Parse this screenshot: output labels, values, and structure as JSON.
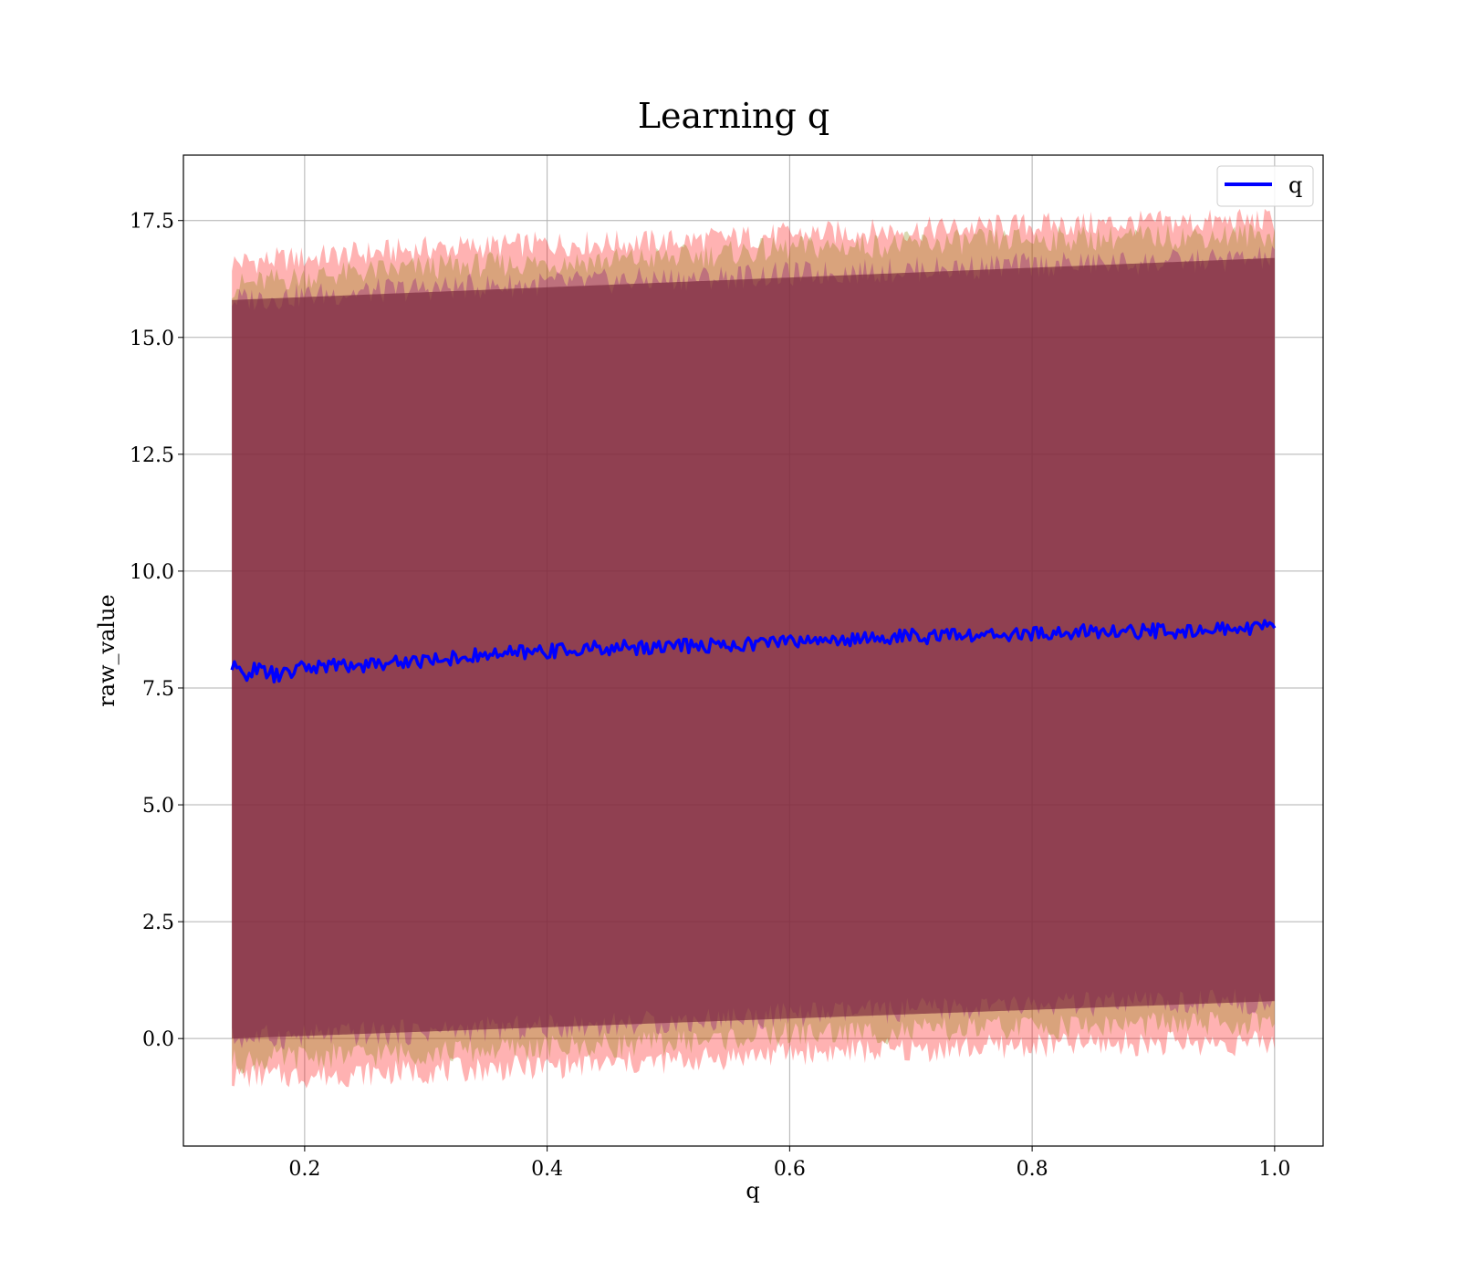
{
  "chart_data": {
    "type": "line",
    "title": "Learning q",
    "xlabel": "q",
    "ylabel": "raw_value",
    "xlim": [
      0.1,
      1.04
    ],
    "ylim": [
      -2.3,
      18.9
    ],
    "xticks": [
      0.2,
      0.4,
      0.6,
      0.8,
      1.0
    ],
    "xtick_labels": [
      "0.2",
      "0.4",
      "0.6",
      "0.8",
      "1.0"
    ],
    "yticks": [
      0.0,
      2.5,
      5.0,
      7.5,
      10.0,
      12.5,
      15.0,
      17.5
    ],
    "ytick_labels": [
      "0.0",
      "2.5",
      "5.0",
      "7.5",
      "10.0",
      "12.5",
      "15.0",
      "17.5"
    ],
    "grid": true,
    "legend": {
      "position": "top-right",
      "entries": [
        {
          "label": "q",
          "color": "#0000ff"
        }
      ]
    },
    "series": [
      {
        "name": "q",
        "color": "#0000ff",
        "x": [
          0.14,
          0.15,
          0.16,
          0.18,
          0.2,
          0.25,
          0.3,
          0.35,
          0.4,
          0.45,
          0.5,
          0.55,
          0.6,
          0.65,
          0.7,
          0.75,
          0.8,
          0.85,
          0.9,
          0.95,
          1.0
        ],
        "y": [
          7.93,
          7.8,
          7.9,
          7.75,
          7.95,
          8.0,
          8.1,
          8.2,
          8.3,
          8.35,
          8.4,
          8.42,
          8.5,
          8.55,
          8.6,
          8.62,
          8.65,
          8.7,
          8.72,
          8.75,
          8.8
        ]
      }
    ],
    "bands": [
      {
        "role": "outer",
        "color": "#ff0000",
        "opacity": 0.3,
        "x": [
          0.14,
          0.2,
          0.3,
          0.4,
          0.5,
          0.6,
          0.7,
          0.8,
          0.9,
          1.0
        ],
        "upper": [
          16.6,
          16.7,
          16.9,
          17.0,
          17.05,
          17.2,
          17.3,
          17.4,
          17.45,
          17.5
        ],
        "lower": [
          -0.8,
          -0.8,
          -0.7,
          -0.6,
          -0.5,
          -0.3,
          -0.25,
          -0.15,
          -0.1,
          -0.1
        ]
      },
      {
        "role": "middle",
        "color": "#808000",
        "opacity": 0.3,
        "x": [
          0.14,
          0.2,
          0.3,
          0.4,
          0.5,
          0.6,
          0.7,
          0.8,
          0.9,
          1.0
        ],
        "upper": [
          16.1,
          16.3,
          16.5,
          16.6,
          16.7,
          16.9,
          17.0,
          17.1,
          17.15,
          17.2
        ],
        "lower": [
          -0.5,
          -0.4,
          -0.3,
          -0.2,
          -0.1,
          0.1,
          0.15,
          0.25,
          0.3,
          0.3
        ]
      },
      {
        "role": "inner",
        "color": "#800080",
        "opacity": 0.3,
        "x": [
          0.14,
          0.2,
          0.3,
          0.4,
          0.5,
          0.6,
          0.7,
          0.8,
          0.9,
          1.0
        ],
        "upper": [
          15.8,
          15.9,
          16.05,
          16.15,
          16.25,
          16.35,
          16.45,
          16.55,
          16.6,
          16.7
        ],
        "lower": [
          0.0,
          0.05,
          0.15,
          0.25,
          0.35,
          0.5,
          0.6,
          0.7,
          0.75,
          0.8
        ]
      },
      {
        "role": "core",
        "color": "#7a2a3c",
        "opacity": 0.68,
        "x": [
          0.14,
          1.0
        ],
        "upper": [
          15.8,
          16.7
        ],
        "lower": [
          0.0,
          0.8
        ]
      }
    ]
  }
}
